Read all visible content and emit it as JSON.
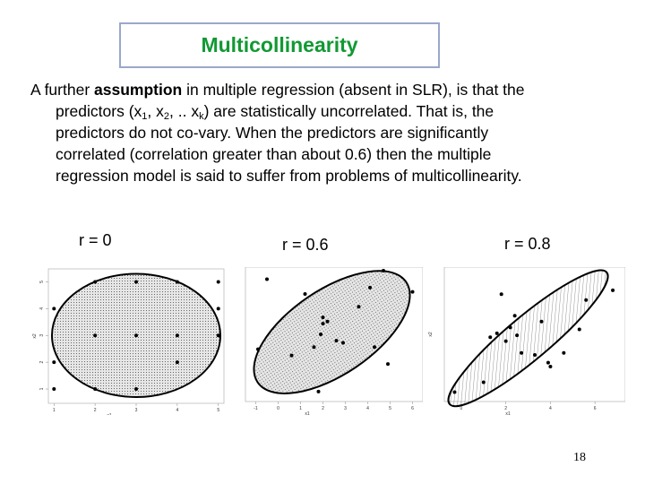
{
  "slide": {
    "title": "Multicollinearity",
    "page_number": "18"
  },
  "paragraph": {
    "l1_a": "A further ",
    "l1_b": "assumption",
    "l1_c": " in multiple regression (absent in SLR), is that the",
    "l2_a": "predictors (x",
    "l2_s1": "1",
    "l2_b": ", x",
    "l2_s2": "2",
    "l2_c": ", .. x",
    "l2_s3": "k",
    "l2_d": ") are statistically uncorrelated.  That is, the",
    "l3": "predictors do not  co-vary.  When the predictors are significantly",
    "l4": "correlated (correlation greater than about 0.6) then the multiple",
    "l5": "regression model is said to suffer from problems of multicollinearity."
  },
  "chart_data": [
    {
      "type": "scatter",
      "title": "r = 0",
      "xlabel": "x1",
      "ylabel": "x2",
      "x_ticks": [
        "1",
        "2",
        "3",
        "4",
        "5"
      ],
      "y_ticks": [
        "1",
        "2",
        "3",
        "4",
        "5"
      ],
      "xlim": [
        0.95,
        5.05
      ],
      "ylim": [
        0.6,
        5.35
      ],
      "points": [
        [
          1,
          1
        ],
        [
          1,
          2
        ],
        [
          1,
          4
        ],
        [
          2,
          1
        ],
        [
          2,
          3
        ],
        [
          2,
          5
        ],
        [
          3,
          1
        ],
        [
          3,
          3
        ],
        [
          3,
          5
        ],
        [
          4,
          2
        ],
        [
          4,
          3
        ],
        [
          4,
          5
        ],
        [
          5,
          3
        ],
        [
          5,
          4
        ],
        [
          5,
          5
        ]
      ],
      "ellipse": {
        "cx": 3.0,
        "cy": 3.0,
        "rx": 2.05,
        "ry": 2.3,
        "angle_deg": 0
      },
      "fill": "dots"
    },
    {
      "type": "scatter",
      "title": "r = 0.6",
      "xlabel": "x1",
      "ylabel": "",
      "x_ticks": [
        "-1",
        "0",
        "1",
        "2",
        "3",
        "4",
        "5",
        "6"
      ],
      "y_ticks": [],
      "xlim": [
        -1.3,
        6.3
      ],
      "ylim": [
        0,
        6
      ],
      "points": [
        [
          -0.9,
          2.3
        ],
        [
          0.6,
          2.0
        ],
        [
          -0.5,
          5.6
        ],
        [
          1.2,
          4.9
        ],
        [
          2.0,
          3.5
        ],
        [
          2.2,
          3.6
        ],
        [
          2.0,
          3.8
        ],
        [
          2.6,
          2.7
        ],
        [
          1.6,
          2.4
        ],
        [
          1.9,
          3.0
        ],
        [
          2.9,
          2.6
        ],
        [
          1.8,
          0.3
        ],
        [
          3.6,
          4.3
        ],
        [
          4.1,
          5.2
        ],
        [
          4.7,
          6.0
        ],
        [
          4.3,
          2.4
        ],
        [
          4.9,
          1.6
        ],
        [
          6.0,
          5.0
        ]
      ],
      "ellipse": {
        "cx": 2.4,
        "cy": 3.1,
        "rx": 4.0,
        "ry": 2.0,
        "angle_deg": 34
      },
      "fill": "dots"
    },
    {
      "type": "scatter",
      "title": "r = 0.8",
      "xlabel": "x1",
      "ylabel": "x2",
      "x_ticks": [
        "0",
        "2",
        "4",
        "6"
      ],
      "y_ticks": [],
      "xlim": [
        -0.6,
        7.2
      ],
      "ylim": [
        -0.3,
        6.2
      ],
      "points": [
        [
          -0.3,
          0.0
        ],
        [
          1.0,
          0.5
        ],
        [
          1.8,
          5.0
        ],
        [
          1.3,
          2.8
        ],
        [
          1.6,
          3.0
        ],
        [
          2.5,
          2.9
        ],
        [
          2.0,
          2.6
        ],
        [
          2.2,
          3.3
        ],
        [
          2.7,
          2.0
        ],
        [
          3.3,
          1.9
        ],
        [
          3.6,
          3.6
        ],
        [
          3.9,
          1.5
        ],
        [
          4.6,
          2.0
        ],
        [
          4.0,
          1.3
        ],
        [
          5.3,
          3.2
        ],
        [
          5.6,
          4.7
        ],
        [
          6.8,
          5.2
        ],
        [
          2.4,
          3.9
        ]
      ],
      "ellipse": {
        "cx": 3.0,
        "cy": 2.75,
        "rx": 4.6,
        "ry": 1.1,
        "angle_deg": 40
      },
      "fill": "hatch"
    }
  ]
}
